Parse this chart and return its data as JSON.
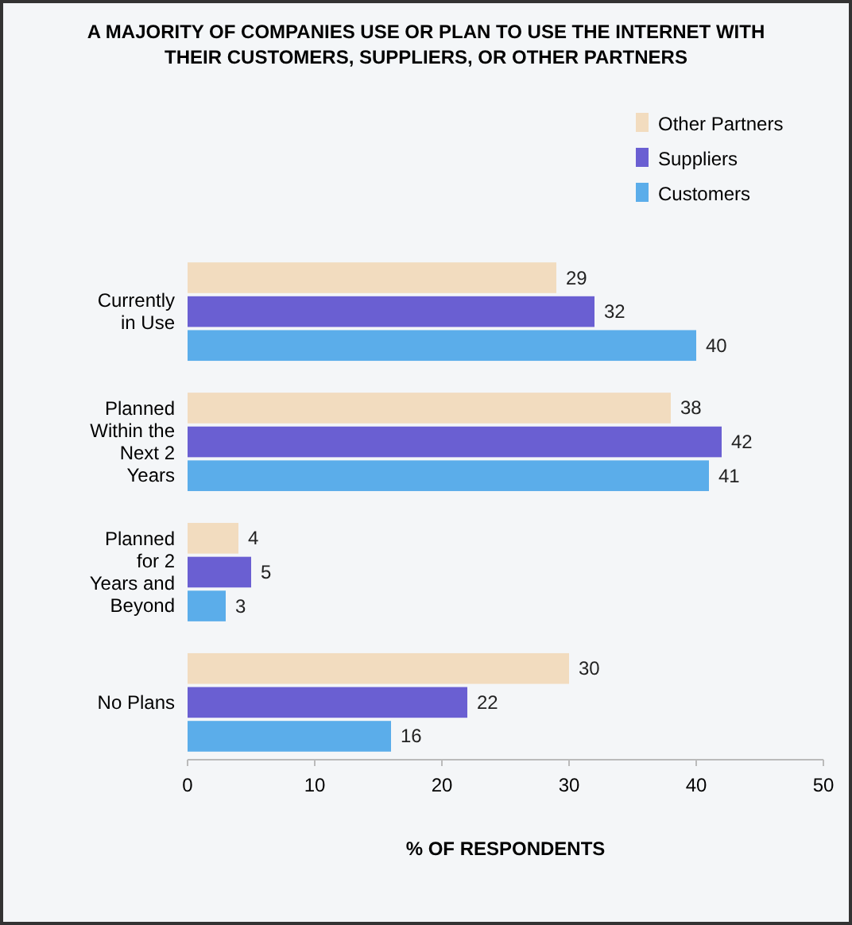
{
  "chart_data": {
    "type": "bar",
    "orientation": "horizontal",
    "title": "A MAJORITY OF COMPANIES USE OR PLAN TO USE THE INTERNET WITH THEIR CUSTOMERS, SUPPLIERS, OR OTHER PARTNERS",
    "xlabel": "% OF RESPONDENTS",
    "categories": [
      "Currently in Use",
      "Planned Within the Next 2 Years",
      "Planned for 2 Years and Beyond",
      "No Plans"
    ],
    "series": [
      {
        "name": "Other Partners",
        "color": "#f2dcbf",
        "values": [
          29,
          38,
          4,
          30
        ]
      },
      {
        "name": "Suppliers",
        "color": "#6a5fd2",
        "values": [
          32,
          42,
          5,
          22
        ]
      },
      {
        "name": "Customers",
        "color": "#5badea",
        "values": [
          40,
          41,
          3,
          16
        ]
      }
    ],
    "xlim": [
      0,
      50
    ],
    "xticks": [
      0,
      10,
      20,
      30,
      40,
      50
    ],
    "data_labels": true,
    "legend": "top right"
  }
}
